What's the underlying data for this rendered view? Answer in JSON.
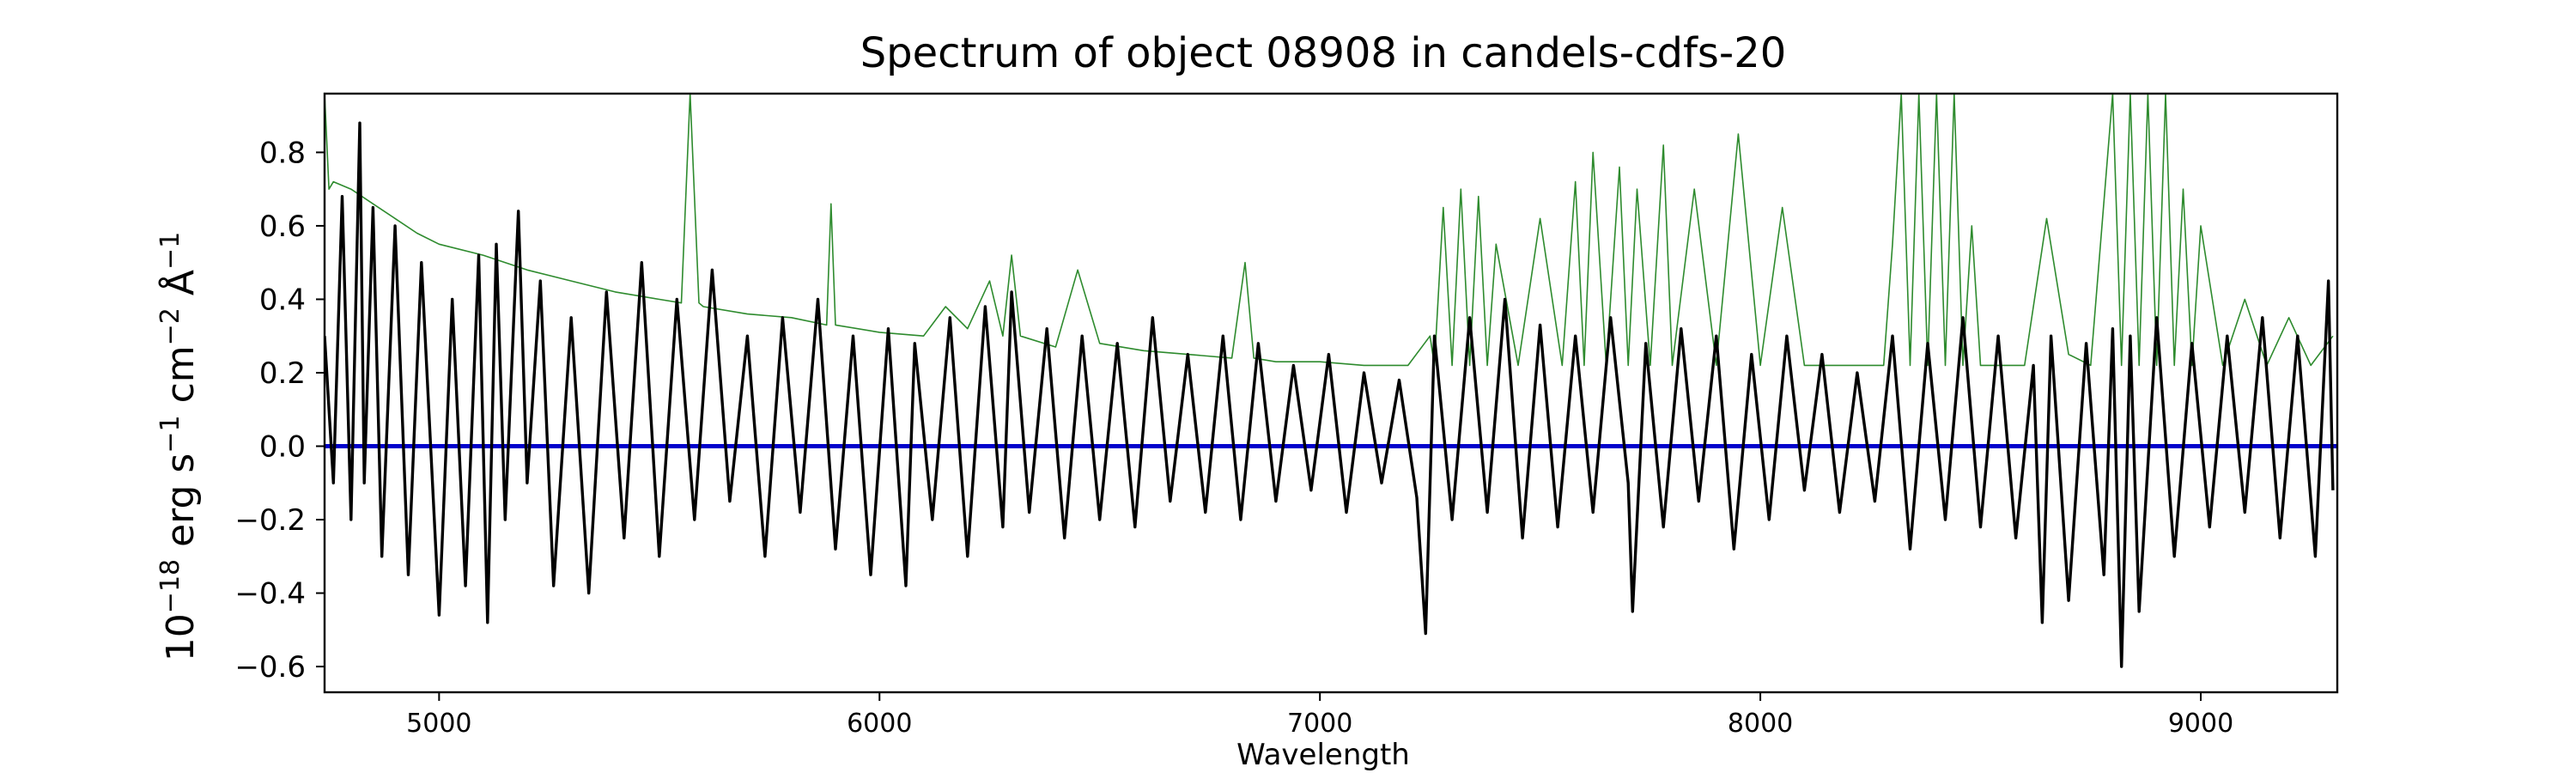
{
  "chart_data": {
    "type": "line",
    "title": "Spectrum of object 08908 in candels-cdfs-20",
    "xlabel": "Wavelength",
    "ylabel_parts": [
      "10",
      "−18",
      " erg s",
      "−1",
      " cm",
      "−2",
      " Å",
      "−1"
    ],
    "xlim": [
      4740,
      9310
    ],
    "ylim": [
      -0.67,
      0.96
    ],
    "xticks": [
      5000,
      6000,
      7000,
      8000,
      9000
    ],
    "yticks": [
      -0.6,
      -0.4,
      -0.2,
      0.0,
      0.2,
      0.4,
      0.6,
      0.8
    ],
    "ytick_labels": [
      "−0.6",
      "−0.4",
      "−0.2",
      "0.0",
      "0.2",
      "0.4",
      "0.6",
      "0.8"
    ],
    "grid": false,
    "colors": {
      "flux": "#000000",
      "error": "#2e8b2e",
      "zero": "#0000cc"
    },
    "series": [
      {
        "role": "flux",
        "x": [
          4740,
          4760,
          4780,
          4800,
          4820,
          4830,
          4850,
          4870,
          4900,
          4930,
          4960,
          5000,
          5030,
          5060,
          5090,
          5110,
          5130,
          5150,
          5180,
          5200,
          5230,
          5260,
          5300,
          5340,
          5380,
          5420,
          5460,
          5500,
          5540,
          5580,
          5620,
          5660,
          5700,
          5740,
          5780,
          5820,
          5860,
          5900,
          5940,
          5980,
          6020,
          6060,
          6080,
          6120,
          6160,
          6200,
          6240,
          6280,
          6300,
          6340,
          6380,
          6420,
          6460,
          6500,
          6540,
          6580,
          6620,
          6660,
          6700,
          6740,
          6780,
          6820,
          6860,
          6900,
          6940,
          6980,
          7020,
          7060,
          7100,
          7140,
          7180,
          7220,
          7240,
          7260,
          7300,
          7340,
          7380,
          7420,
          7460,
          7500,
          7540,
          7580,
          7620,
          7660,
          7700,
          7710,
          7740,
          7780,
          7820,
          7860,
          7900,
          7940,
          7980,
          8020,
          8060,
          8100,
          8140,
          8180,
          8220,
          8260,
          8300,
          8340,
          8380,
          8420,
          8460,
          8500,
          8540,
          8580,
          8620,
          8640,
          8660,
          8700,
          8740,
          8780,
          8800,
          8820,
          8840,
          8860,
          8900,
          8940,
          8980,
          9020,
          9060,
          9100,
          9140,
          9180,
          9220,
          9260,
          9290,
          9300
        ],
        "y": [
          0.3,
          -0.1,
          0.68,
          -0.2,
          0.88,
          -0.1,
          0.65,
          -0.3,
          0.6,
          -0.35,
          0.5,
          -0.46,
          0.4,
          -0.38,
          0.52,
          -0.48,
          0.55,
          -0.2,
          0.64,
          -0.1,
          0.45,
          -0.38,
          0.35,
          -0.4,
          0.42,
          -0.25,
          0.5,
          -0.3,
          0.4,
          -0.2,
          0.48,
          -0.15,
          0.3,
          -0.3,
          0.35,
          -0.18,
          0.4,
          -0.28,
          0.3,
          -0.35,
          0.32,
          -0.38,
          0.28,
          -0.2,
          0.35,
          -0.3,
          0.38,
          -0.22,
          0.42,
          -0.18,
          0.32,
          -0.25,
          0.3,
          -0.2,
          0.28,
          -0.22,
          0.35,
          -0.15,
          0.25,
          -0.18,
          0.3,
          -0.2,
          0.28,
          -0.15,
          0.22,
          -0.12,
          0.25,
          -0.18,
          0.2,
          -0.1,
          0.18,
          -0.14,
          -0.51,
          0.3,
          -0.2,
          0.35,
          -0.18,
          0.4,
          -0.25,
          0.33,
          -0.22,
          0.3,
          -0.18,
          0.35,
          -0.1,
          -0.45,
          0.28,
          -0.22,
          0.32,
          -0.15,
          0.3,
          -0.28,
          0.25,
          -0.2,
          0.3,
          -0.12,
          0.25,
          -0.18,
          0.2,
          -0.15,
          0.3,
          -0.28,
          0.28,
          -0.2,
          0.35,
          -0.22,
          0.3,
          -0.25,
          0.22,
          -0.48,
          0.3,
          -0.42,
          0.28,
          -0.35,
          0.32,
          -0.6,
          0.3,
          -0.45,
          0.35,
          -0.3,
          0.28,
          -0.22,
          0.3,
          -0.18,
          0.35,
          -0.25,
          0.3,
          -0.3,
          0.45,
          -0.12
        ]
      },
      {
        "role": "error",
        "x": [
          4740,
          4750,
          4760,
          4800,
          4850,
          4900,
          4950,
          5000,
          5100,
          5200,
          5300,
          5400,
          5500,
          5550,
          5570,
          5590,
          5600,
          5700,
          5800,
          5880,
          5890,
          5900,
          6000,
          6100,
          6150,
          6200,
          6250,
          6280,
          6300,
          6320,
          6400,
          6450,
          6500,
          6600,
          6700,
          6800,
          6830,
          6850,
          6900,
          7000,
          7100,
          7200,
          7250,
          7260,
          7280,
          7300,
          7320,
          7340,
          7360,
          7380,
          7400,
          7450,
          7500,
          7550,
          7580,
          7600,
          7620,
          7650,
          7680,
          7700,
          7720,
          7750,
          7780,
          7800,
          7850,
          7900,
          7950,
          8000,
          8050,
          8100,
          8200,
          8280,
          8300,
          8320,
          8340,
          8360,
          8380,
          8400,
          8420,
          8440,
          8460,
          8480,
          8500,
          8550,
          8600,
          8650,
          8700,
          8750,
          8800,
          8820,
          8840,
          8860,
          8880,
          8900,
          8920,
          8940,
          8960,
          8980,
          9000,
          9050,
          9100,
          9150,
          9200,
          9250,
          9300
        ],
        "y": [
          0.96,
          0.7,
          0.72,
          0.7,
          0.66,
          0.62,
          0.58,
          0.55,
          0.52,
          0.48,
          0.45,
          0.42,
          0.4,
          0.39,
          0.96,
          0.39,
          0.38,
          0.36,
          0.35,
          0.33,
          0.66,
          0.33,
          0.31,
          0.3,
          0.38,
          0.32,
          0.45,
          0.3,
          0.52,
          0.3,
          0.27,
          0.48,
          0.28,
          0.26,
          0.25,
          0.24,
          0.5,
          0.24,
          0.23,
          0.23,
          0.22,
          0.22,
          0.3,
          0.22,
          0.65,
          0.22,
          0.7,
          0.22,
          0.68,
          0.22,
          0.55,
          0.22,
          0.62,
          0.22,
          0.72,
          0.22,
          0.8,
          0.22,
          0.76,
          0.22,
          0.7,
          0.22,
          0.82,
          0.22,
          0.7,
          0.22,
          0.85,
          0.22,
          0.65,
          0.22,
          0.22,
          0.22,
          0.55,
          0.96,
          0.22,
          0.96,
          0.22,
          0.96,
          0.22,
          0.96,
          0.22,
          0.6,
          0.22,
          0.22,
          0.22,
          0.62,
          0.25,
          0.22,
          0.96,
          0.22,
          0.96,
          0.22,
          0.96,
          0.22,
          0.96,
          0.22,
          0.7,
          0.22,
          0.6,
          0.22,
          0.4,
          0.22,
          0.35,
          0.22,
          0.3
        ]
      },
      {
        "role": "zero",
        "x": [
          4740,
          9310
        ],
        "y": [
          0.0,
          0.0
        ]
      }
    ]
  }
}
